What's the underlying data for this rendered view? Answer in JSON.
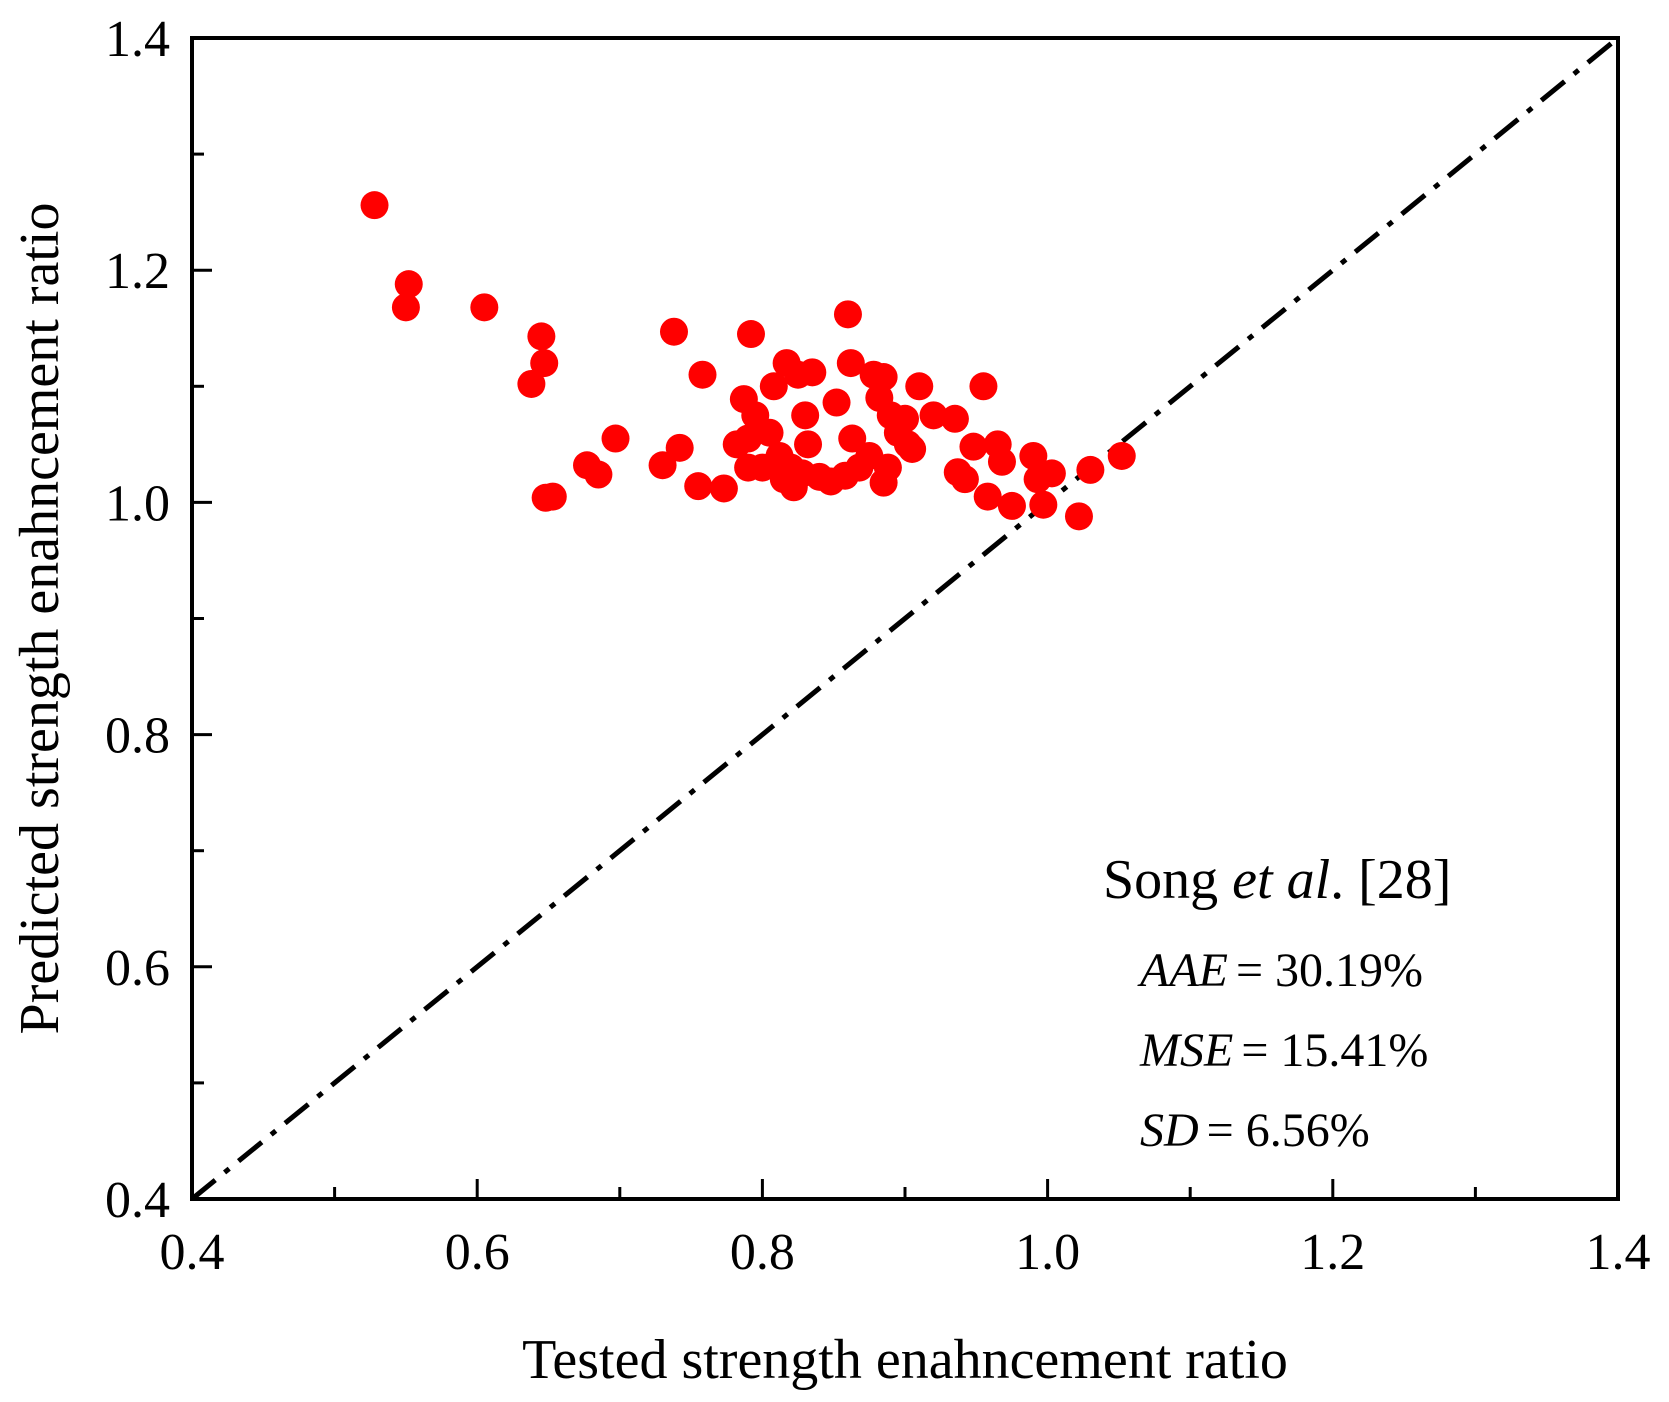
{
  "chart_data": {
    "type": "scatter",
    "xlabel": "Tested strength enahncement ratio",
    "ylabel": "Predicted strength enahncement ratio",
    "xlim": [
      0.4,
      1.4
    ],
    "ylim": [
      0.4,
      1.4
    ],
    "x_ticks": [
      "0.4",
      "0.6",
      "0.8",
      "1.0",
      "1.2",
      "1.4"
    ],
    "y_ticks": [
      "0.4",
      "0.6",
      "0.8",
      "1.0",
      "1.2",
      "1.4"
    ],
    "reference_line": {
      "label": "y = x",
      "style": "dash-dot",
      "from": [
        0.4,
        0.4
      ],
      "to": [
        1.4,
        1.4
      ]
    },
    "marker_color": "#ff0000",
    "line_color": "#000000",
    "annotation": {
      "title_prefix": "Song ",
      "title_italic": "et al",
      "title_suffix": ". [28]",
      "metrics": [
        {
          "name": "AAE",
          "value": "= 30.19%"
        },
        {
          "name": "MSE",
          "value": "= 15.41%"
        },
        {
          "name": "SD",
          "value": "= 6.56%"
        }
      ]
    },
    "series": [
      {
        "name": "Song et al. [28]",
        "points": [
          [
            0.528,
            1.256
          ],
          [
            0.55,
            1.168
          ],
          [
            0.552,
            1.188
          ],
          [
            0.605,
            1.168
          ],
          [
            0.638,
            1.102
          ],
          [
            0.645,
            1.143
          ],
          [
            0.647,
            1.12
          ],
          [
            0.648,
            1.004
          ],
          [
            0.653,
            1.005
          ],
          [
            0.677,
            1.032
          ],
          [
            0.685,
            1.024
          ],
          [
            0.697,
            1.055
          ],
          [
            0.73,
            1.032
          ],
          [
            0.738,
            1.147
          ],
          [
            0.742,
            1.047
          ],
          [
            0.755,
            1.014
          ],
          [
            0.758,
            1.11
          ],
          [
            0.773,
            1.012
          ],
          [
            0.782,
            1.05
          ],
          [
            0.787,
            1.089
          ],
          [
            0.79,
            1.03
          ],
          [
            0.79,
            1.055
          ],
          [
            0.792,
            1.145
          ],
          [
            0.795,
            1.075
          ],
          [
            0.8,
            1.03
          ],
          [
            0.805,
            1.06
          ],
          [
            0.808,
            1.1
          ],
          [
            0.812,
            1.04
          ],
          [
            0.815,
            1.02
          ],
          [
            0.817,
            1.12
          ],
          [
            0.82,
            1.03
          ],
          [
            0.822,
            1.013
          ],
          [
            0.825,
            1.11
          ],
          [
            0.828,
            1.025
          ],
          [
            0.83,
            1.075
          ],
          [
            0.832,
            1.05
          ],
          [
            0.835,
            1.112
          ],
          [
            0.84,
            1.022
          ],
          [
            0.848,
            1.018
          ],
          [
            0.852,
            1.086
          ],
          [
            0.858,
            1.023
          ],
          [
            0.86,
            1.162
          ],
          [
            0.862,
            1.12
          ],
          [
            0.863,
            1.055
          ],
          [
            0.868,
            1.03
          ],
          [
            0.875,
            1.04
          ],
          [
            0.878,
            1.11
          ],
          [
            0.882,
            1.09
          ],
          [
            0.885,
            1.108
          ],
          [
            0.885,
            1.017
          ],
          [
            0.888,
            1.03
          ],
          [
            0.89,
            1.075
          ],
          [
            0.895,
            1.06
          ],
          [
            0.9,
            1.072
          ],
          [
            0.902,
            1.05
          ],
          [
            0.905,
            1.046
          ],
          [
            0.91,
            1.1
          ],
          [
            0.92,
            1.075
          ],
          [
            0.935,
            1.072
          ],
          [
            0.937,
            1.026
          ],
          [
            0.942,
            1.02
          ],
          [
            0.948,
            1.048
          ],
          [
            0.955,
            1.1
          ],
          [
            0.958,
            1.005
          ],
          [
            0.965,
            1.05
          ],
          [
            0.968,
            1.035
          ],
          [
            0.975,
            0.997
          ],
          [
            0.99,
            1.04
          ],
          [
            0.993,
            1.02
          ],
          [
            0.997,
            0.998
          ],
          [
            1.003,
            1.025
          ],
          [
            1.022,
            0.988
          ],
          [
            1.03,
            1.028
          ],
          [
            1.052,
            1.04
          ]
        ]
      }
    ]
  }
}
